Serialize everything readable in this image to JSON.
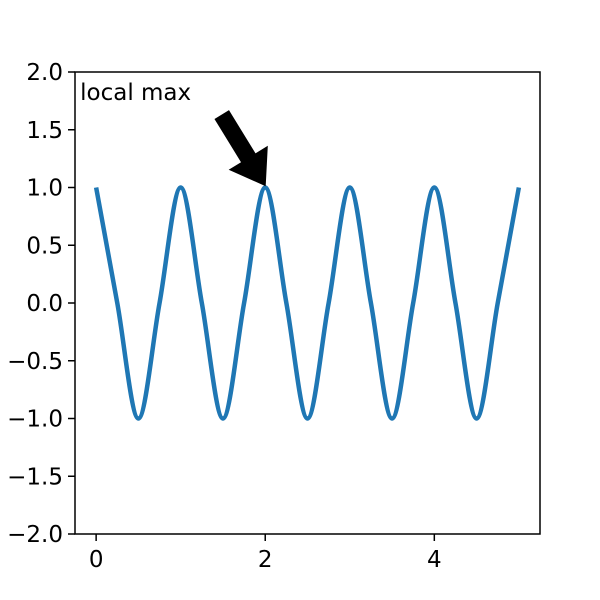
{
  "chart_data": {
    "type": "line",
    "title": "",
    "xlabel": "",
    "ylabel": "",
    "xlim": [
      -0.25,
      5.25
    ],
    "ylim": [
      -2.0,
      2.0
    ],
    "grid": false,
    "xticks": [
      0,
      2,
      4
    ],
    "xtick_labels": [
      "0",
      "2",
      "4"
    ],
    "yticks": [
      -2.0,
      -1.5,
      -1.0,
      -0.5,
      0.0,
      0.5,
      1.0,
      1.5,
      2.0
    ],
    "ytick_labels": [
      "−2.0",
      "−1.5",
      "−1.0",
      "−0.5",
      "0.0",
      "0.5",
      "1.0",
      "1.5",
      "2.0"
    ],
    "series": [
      {
        "color": "#1f77b4",
        "x": [
          0,
          0.25,
          0.5,
          0.75,
          1,
          1.25,
          1.5,
          1.75,
          2,
          2.25,
          2.5,
          2.75,
          3,
          3.25,
          3.5,
          3.75,
          4,
          4.25,
          4.5,
          4.75,
          5
        ],
        "y": [
          1,
          0,
          -1,
          0,
          1,
          0,
          -1,
          0,
          1,
          0,
          -1,
          0,
          1,
          0,
          -1,
          0,
          1,
          0,
          -1,
          0,
          1
        ]
      }
    ],
    "annotations": [
      {
        "text": "local max",
        "xy": [
          2,
          1
        ],
        "xytext": [
          0,
          1.5
        ],
        "arrow": true,
        "arrow_color": "#000000"
      }
    ]
  }
}
